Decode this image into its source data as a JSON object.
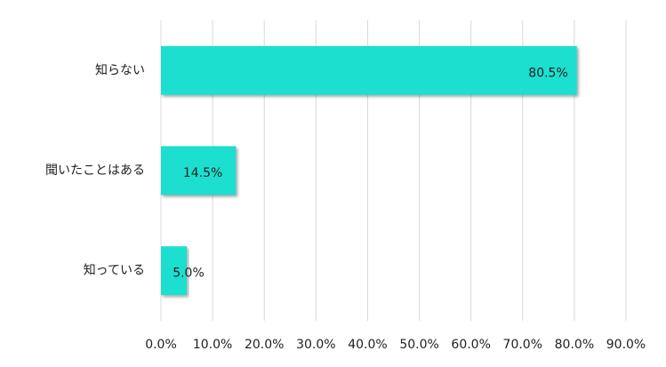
{
  "chart_data": {
    "type": "bar",
    "orientation": "horizontal",
    "categories": [
      "知らない",
      "聞いたことはある",
      "知っている"
    ],
    "values": [
      80.5,
      14.5,
      5.0
    ],
    "value_labels": [
      "80.5%",
      "14.5%",
      "5.0%"
    ],
    "color": "#1adfcf",
    "xlim": [
      0,
      90
    ],
    "xticks": [
      {
        "value": 0,
        "label": "0.0%"
      },
      {
        "value": 10,
        "label": "10.0%"
      },
      {
        "value": 20,
        "label": "20.0%"
      },
      {
        "value": 30,
        "label": "30.0%"
      },
      {
        "value": 40,
        "label": "40.0%"
      },
      {
        "value": 50,
        "label": "50.0%"
      },
      {
        "value": 60,
        "label": "60.0%"
      },
      {
        "value": 70,
        "label": "70.0%"
      },
      {
        "value": 80,
        "label": "80.0%"
      },
      {
        "value": 90,
        "label": "90.0%"
      }
    ],
    "grid": true
  }
}
